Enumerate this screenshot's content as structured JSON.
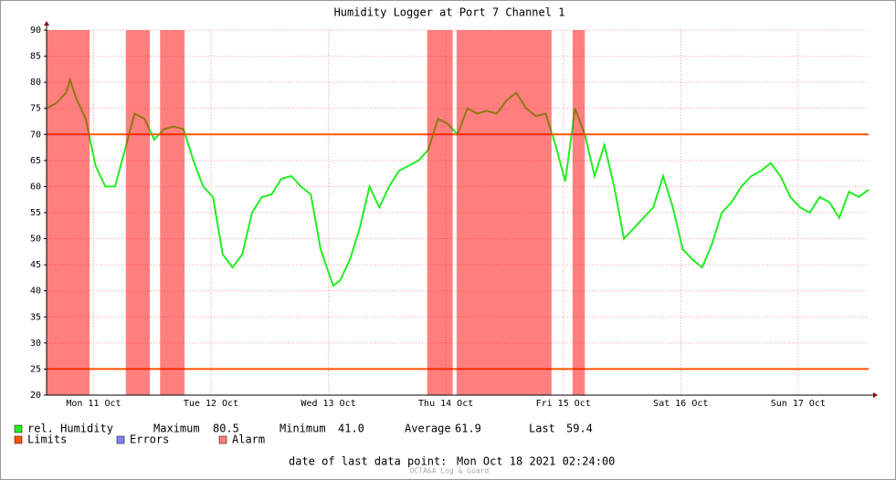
{
  "chart_data": {
    "type": "line",
    "title": "Humidity Logger at Port 7 Channel 1",
    "x": [
      0,
      2,
      4,
      4.8,
      6,
      8,
      10,
      12,
      14,
      16,
      18,
      20,
      22,
      24,
      26,
      28,
      30,
      32,
      34,
      36,
      38,
      40,
      42,
      44,
      46,
      48,
      50,
      52,
      54,
      56,
      58,
      58.6,
      60,
      62,
      64,
      66,
      68,
      70,
      72,
      74,
      76,
      78,
      80,
      82,
      84,
      86,
      88,
      90,
      92,
      94,
      96,
      98,
      100,
      102,
      104,
      106,
      108,
      110,
      112,
      114,
      116,
      118,
      120,
      122,
      124,
      126,
      128,
      130,
      132,
      134,
      136,
      138,
      140,
      142,
      144,
      146,
      148,
      150,
      152,
      154,
      156,
      158,
      160,
      162,
      164,
      166,
      168
    ],
    "series": [
      {
        "name": "rel. Humidity",
        "color": "#22ee22",
        "values": [
          75,
          76,
          78,
          80.5,
          77,
          73,
          64,
          60,
          60,
          67,
          74,
          73,
          69,
          71,
          71.5,
          71,
          65,
          60,
          58,
          47,
          44.5,
          47,
          55,
          58,
          58.5,
          61.5,
          62,
          60,
          58.5,
          48,
          42.5,
          41,
          42,
          46,
          52,
          60,
          56,
          60,
          63,
          64,
          65,
          67,
          73,
          72,
          70,
          75,
          74,
          74.5,
          74,
          76.5,
          78,
          75,
          73.5,
          74,
          68,
          61,
          75,
          70,
          62,
          68,
          60,
          50,
          52,
          54,
          56,
          62,
          56,
          48,
          46,
          44.5,
          49,
          55,
          57,
          60,
          62,
          63,
          64.5,
          62,
          58,
          56,
          55,
          58,
          57,
          54,
          59,
          58,
          59.4
        ]
      }
    ],
    "xlim": [
      0,
      168
    ],
    "xticks": [
      {
        "value": 9.6,
        "label": "Mon 11 Oct"
      },
      {
        "value": 33.6,
        "label": "Tue 12 Oct"
      },
      {
        "value": 57.6,
        "label": "Wed 13 Oct"
      },
      {
        "value": 81.6,
        "label": "Thu 14 Oct"
      },
      {
        "value": 105.6,
        "label": "Fri 15 Oct"
      },
      {
        "value": 129.6,
        "label": "Sat 16 Oct"
      },
      {
        "value": 153.6,
        "label": "Sun 17 Oct"
      }
    ],
    "ylim": [
      20,
      90
    ],
    "yticks": [
      20,
      25,
      30,
      35,
      40,
      45,
      50,
      55,
      60,
      65,
      70,
      75,
      80,
      85,
      90
    ],
    "grid": true,
    "limits": {
      "name": "Limits",
      "color": "#ff5500",
      "values": [
        70,
        25
      ]
    },
    "errors": {
      "name": "Errors",
      "color": "#7f7fff"
    },
    "alarms": {
      "name": "Alarm",
      "color": "#ff7f7f",
      "ranges": [
        [
          0,
          8.8
        ],
        [
          16.2,
          21.1
        ],
        [
          23.2,
          28.2
        ],
        [
          77.8,
          83.0
        ],
        [
          83.8,
          103.2
        ],
        [
          107.5,
          110.0
        ]
      ]
    },
    "stats": [
      {
        "name": "Maximum",
        "value": 80.5
      },
      {
        "name": "Minimum",
        "value": 41,
        "value_label": "41.0"
      },
      {
        "name": "Average",
        "value": 61.9
      },
      {
        "name": "Last",
        "value": 59.4
      }
    ],
    "footer": {
      "label": "date of last data point:",
      "timestamp": "Mon Oct 18 2021 02:24:00",
      "credit": "OCTA&A Log & Guard"
    }
  }
}
